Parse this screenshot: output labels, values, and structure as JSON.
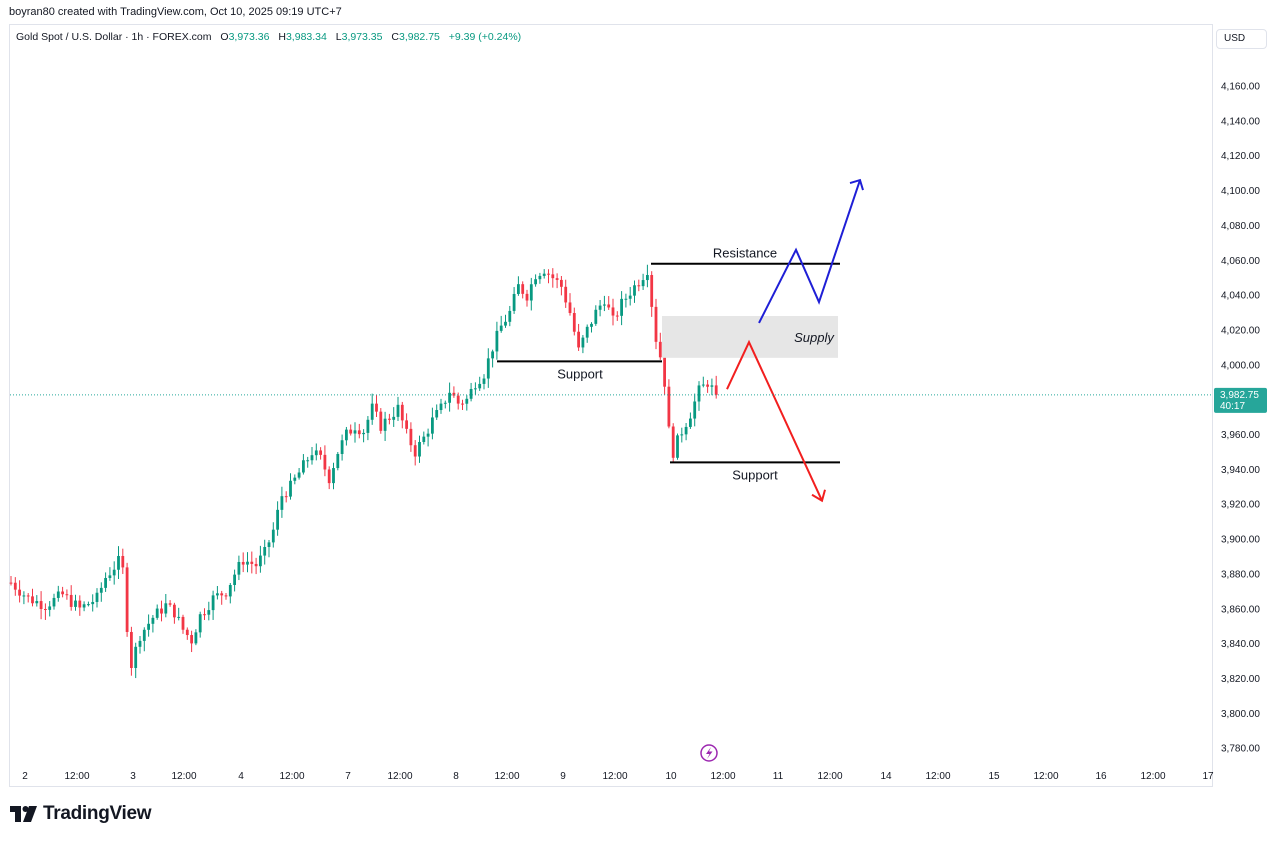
{
  "header": {
    "credit": "boyran80 created with TradingView.com, Oct 10, 2025 09:19 UTC+7"
  },
  "legend": {
    "symbol": "Gold Spot / U.S. Dollar · 1h · FOREX.com",
    "o_label": "O",
    "o_value": "3,973.36",
    "h_label": "H",
    "h_value": "3,983.34",
    "l_label": "L",
    "l_value": "3,973.35",
    "c_label": "C",
    "c_value": "3,982.75",
    "change": "+9.39 (+0.24%)"
  },
  "currency": "USD",
  "price_tag": {
    "price": "3,982.75",
    "countdown": "40:17",
    "color": "#26a69a"
  },
  "colors": {
    "up": "#089981",
    "down": "#f23645",
    "blue_arrow": "#1f1fd6",
    "red_arrow": "#f21f1f",
    "supply_zone": "#e6e6e6",
    "line": "#000000"
  },
  "footer": {
    "brand": "TradingView"
  },
  "annotations": {
    "resistance": "Resistance",
    "supply": "Supply",
    "support_upper": "Support",
    "support_lower": "Support"
  },
  "chart_data": {
    "type": "candlestick",
    "timeframe": "1h",
    "y_axis": {
      "min": 3770,
      "max": 4180,
      "ticks": [
        3780,
        3800,
        3820,
        3840,
        3860,
        3880,
        3900,
        3920,
        3940,
        3960,
        3980,
        4000,
        4020,
        4040,
        4060,
        4080,
        4100,
        4120,
        4140,
        4160
      ],
      "tick_labels": [
        "3,780.00",
        "3,800.00",
        "3,820.00",
        "3,840.00",
        "3,860.00",
        "3,880.00",
        "3,900.00",
        "3,920.00",
        "3,940.00",
        "3,960.00",
        "3,980.00",
        "4,000.00",
        "4,020.00",
        "4,040.00",
        "4,060.00",
        "4,080.00",
        "4,100.00",
        "4,120.00",
        "4,140.00",
        "4,160.00"
      ]
    },
    "x_axis": {
      "tick_labels": [
        "2",
        "12:00",
        "3",
        "12:00",
        "4",
        "12:00",
        "7",
        "12:00",
        "8",
        "12:00",
        "9",
        "12:00",
        "10",
        "12:00",
        "11",
        "12:00",
        "14",
        "12:00",
        "15",
        "12:00",
        "16",
        "12:00",
        "17"
      ]
    },
    "last_price": 3982.75,
    "price_path": [
      [
        0,
        3875
      ],
      [
        4,
        3866
      ],
      [
        8,
        3862
      ],
      [
        12,
        3868
      ],
      [
        16,
        3860
      ],
      [
        20,
        3866
      ],
      [
        22,
        3878
      ],
      [
        25,
        3887
      ],
      [
        26,
        3882
      ],
      [
        27,
        3850
      ],
      [
        28,
        3828
      ],
      [
        30,
        3845
      ],
      [
        33,
        3855
      ],
      [
        36,
        3862
      ],
      [
        38,
        3858
      ],
      [
        40,
        3848
      ],
      [
        42,
        3842
      ],
      [
        44,
        3856
      ],
      [
        47,
        3866
      ],
      [
        50,
        3870
      ],
      [
        52,
        3880
      ],
      [
        54,
        3888
      ],
      [
        57,
        3885
      ],
      [
        59,
        3892
      ],
      [
        61,
        3905
      ],
      [
        63,
        3925
      ],
      [
        65,
        3930
      ],
      [
        68,
        3942
      ],
      [
        70,
        3950
      ],
      [
        72,
        3946
      ],
      [
        74,
        3935
      ],
      [
        76,
        3950
      ],
      [
        78,
        3960
      ],
      [
        80,
        3965
      ],
      [
        82,
        3962
      ],
      [
        84,
        3975
      ],
      [
        86,
        3965
      ],
      [
        88,
        3970
      ],
      [
        90,
        3975
      ],
      [
        92,
        3960
      ],
      [
        94,
        3950
      ],
      [
        96,
        3958
      ],
      [
        98,
        3968
      ],
      [
        100,
        3975
      ],
      [
        102,
        3985
      ],
      [
        104,
        3978
      ],
      [
        106,
        3980
      ],
      [
        108,
        3990
      ],
      [
        110,
        3995
      ],
      [
        112,
        4010
      ],
      [
        114,
        4022
      ],
      [
        116,
        4030
      ],
      [
        118,
        4045
      ],
      [
        120,
        4040
      ],
      [
        122,
        4052
      ],
      [
        124,
        4055
      ],
      [
        126,
        4050
      ],
      [
        128,
        4045
      ],
      [
        130,
        4030
      ],
      [
        132,
        4008
      ],
      [
        134,
        4020
      ],
      [
        136,
        4030
      ],
      [
        138,
        4038
      ],
      [
        140,
        4025
      ],
      [
        142,
        4035
      ],
      [
        144,
        4042
      ],
      [
        146,
        4048
      ],
      [
        148,
        4055
      ],
      [
        149,
        4035
      ],
      [
        150,
        4015
      ],
      [
        151,
        4005
      ],
      [
        152,
        3990
      ],
      [
        153,
        3962
      ],
      [
        154,
        3950
      ],
      [
        156,
        3962
      ],
      [
        158,
        3972
      ],
      [
        160,
        3985
      ],
      [
        162,
        3990
      ],
      [
        164,
        3982.75
      ]
    ],
    "levels": [
      {
        "label": "Resistance",
        "price": 4058
      },
      {
        "label": "Support",
        "price": 4002
      },
      {
        "label": "Support",
        "price": 3944
      }
    ],
    "zones": [
      {
        "label": "Supply",
        "price_from": 4004,
        "price_to": 4028
      }
    ],
    "scenarios": [
      {
        "color": "blue",
        "path": [
          4024,
          4066,
          4036,
          4106
        ]
      },
      {
        "color": "red",
        "path": [
          3986,
          4013,
          3922
        ]
      }
    ]
  }
}
